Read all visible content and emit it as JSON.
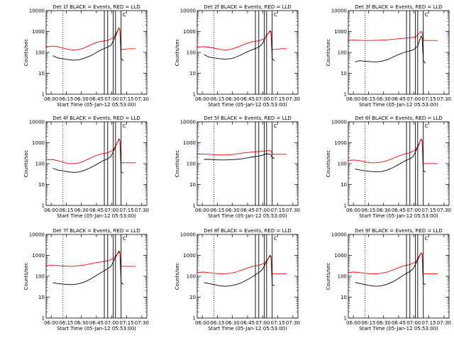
{
  "figure": {
    "xlabel": "Start Time (05-Jan-12 05:53:00)",
    "ylabel": "Counts/sec"
  },
  "chart_data": [
    {
      "type": "line",
      "title": "Det 1f BLACK = Events, RED = LLD",
      "xlabel": "Start Time (05-Jan-12 05:53:00)",
      "ylabel": "Counts/sec",
      "x_ticks": [
        "06:00",
        "06:15",
        "06:30",
        "06:45",
        "07:00",
        "07:15",
        "07:30"
      ],
      "y_ticks": [
        "1",
        "10",
        "100",
        "1000",
        "10000"
      ],
      "ylim": [
        1,
        10000
      ],
      "yscale": "log",
      "xlim_minutes": [
        0,
        90
      ],
      "vertical_lines_minutes": [
        52,
        55,
        60,
        62,
        67
      ],
      "dotted_line_minutes": 15,
      "annotation": "C",
      "series": [
        {
          "name": "Events",
          "color": "#000000",
          "x": [
            6,
            10,
            15,
            20,
            25,
            30,
            35,
            40,
            45,
            50,
            55,
            58,
            62,
            65,
            66,
            67,
            69
          ],
          "y": [
            70,
            55,
            50,
            45,
            42,
            45,
            55,
            70,
            100,
            140,
            180,
            220,
            600,
            1500,
            1200,
            50,
            40
          ]
        },
        {
          "name": "LLD",
          "color": "#ff0000",
          "x": [
            0,
            5,
            10,
            15,
            20,
            25,
            30,
            35,
            40,
            45,
            50,
            55,
            60,
            65,
            66,
            67,
            70,
            75,
            80
          ],
          "y": [
            180,
            200,
            190,
            160,
            140,
            130,
            140,
            170,
            230,
            300,
            340,
            380,
            500,
            1400,
            1200,
            140,
            140,
            150,
            150
          ]
        }
      ]
    },
    {
      "type": "line",
      "title": "Det 2f BLACK = Events, RED = LLD",
      "xlabel": "Start Time (05-Jan-12 05:53:00)",
      "ylabel": "Counts/sec",
      "x_ticks": [
        "06:00",
        "06:15",
        "06:30",
        "06:45",
        "07:00",
        "07:15",
        "07:30"
      ],
      "y_ticks": [
        "1",
        "10",
        "100",
        "1000",
        "10000"
      ],
      "ylim": [
        1,
        10000
      ],
      "yscale": "log",
      "xlim_minutes": [
        0,
        90
      ],
      "vertical_lines_minutes": [
        52,
        55,
        60,
        62,
        67
      ],
      "dotted_line_minutes": 15,
      "annotation": "C",
      "series": [
        {
          "name": "Events",
          "color": "#000000",
          "x": [
            6,
            10,
            15,
            20,
            25,
            30,
            35,
            40,
            45,
            50,
            55,
            58,
            62,
            65,
            66,
            67,
            69
          ],
          "y": [
            80,
            60,
            55,
            50,
            48,
            50,
            60,
            80,
            110,
            140,
            180,
            250,
            700,
            1000,
            900,
            50,
            40
          ]
        },
        {
          "name": "LLD",
          "color": "#ff0000",
          "x": [
            0,
            5,
            10,
            15,
            20,
            25,
            30,
            35,
            40,
            45,
            50,
            55,
            60,
            65,
            66,
            67,
            70,
            75,
            80
          ],
          "y": [
            170,
            190,
            180,
            160,
            140,
            130,
            140,
            170,
            220,
            280,
            330,
            360,
            450,
            1100,
            1000,
            140,
            140,
            150,
            150
          ]
        }
      ]
    },
    {
      "type": "line",
      "title": "Det 3f BLACK = Events, RED = LLD",
      "xlabel": "Start Time (05-Jan-12 05:53:00)",
      "ylabel": "Counts/sec",
      "x_ticks": [
        "06:00",
        "06:15",
        "06:30",
        "06:45",
        "07:00",
        "07:15",
        "07:30"
      ],
      "y_ticks": [
        "1",
        "10",
        "100",
        "1000",
        "10000"
      ],
      "ylim": [
        1,
        10000
      ],
      "yscale": "log",
      "xlim_minutes": [
        0,
        90
      ],
      "vertical_lines_minutes": [
        52,
        55,
        60,
        62,
        67
      ],
      "dotted_line_minutes": 15,
      "annotation": "C",
      "series": [
        {
          "name": "Events",
          "color": "#000000",
          "x": [
            6,
            10,
            15,
            20,
            25,
            30,
            35,
            40,
            45,
            50,
            55,
            58,
            62,
            65,
            66,
            67,
            69
          ],
          "y": [
            35,
            40,
            38,
            36,
            35,
            38,
            45,
            60,
            80,
            100,
            120,
            130,
            200,
            600,
            500,
            40,
            30
          ]
        },
        {
          "name": "LLD",
          "color": "#ff0000",
          "x": [
            0,
            5,
            10,
            15,
            20,
            25,
            30,
            35,
            40,
            45,
            50,
            55,
            60,
            65,
            66,
            67,
            70,
            75,
            80
          ],
          "y": [
            380,
            390,
            380,
            370,
            370,
            380,
            390,
            400,
            420,
            450,
            480,
            500,
            550,
            1000,
            900,
            380,
            370,
            370,
            370
          ]
        }
      ]
    },
    {
      "type": "line",
      "title": "Det 4f BLACK = Events, RED = LLD",
      "xlabel": "Start Time (05-Jan-12 05:53:00)",
      "ylabel": "Counts/sec",
      "x_ticks": [
        "06:00",
        "06:15",
        "06:30",
        "06:45",
        "07:00",
        "07:15",
        "07:30"
      ],
      "y_ticks": [
        "1",
        "10",
        "100",
        "1000",
        "10000"
      ],
      "ylim": [
        1,
        10000
      ],
      "yscale": "log",
      "xlim_minutes": [
        0,
        90
      ],
      "vertical_lines_minutes": [
        52,
        55,
        60,
        62,
        67
      ],
      "dotted_line_minutes": 15,
      "annotation": "C",
      "series": [
        {
          "name": "Events",
          "color": "#000000",
          "x": [
            6,
            10,
            15,
            20,
            25,
            30,
            35,
            40,
            45,
            50,
            55,
            58,
            62,
            65,
            66,
            67,
            69
          ],
          "y": [
            60,
            50,
            45,
            40,
            38,
            40,
            50,
            65,
            90,
            130,
            170,
            220,
            650,
            1500,
            1300,
            40,
            35
          ]
        },
        {
          "name": "LLD",
          "color": "#ff0000",
          "x": [
            0,
            5,
            10,
            15,
            20,
            25,
            30,
            35,
            40,
            45,
            50,
            55,
            60,
            65,
            66,
            67,
            70,
            75,
            80
          ],
          "y": [
            150,
            160,
            140,
            120,
            100,
            100,
            110,
            140,
            190,
            250,
            300,
            330,
            450,
            1400,
            1300,
            110,
            110,
            110,
            110
          ]
        }
      ]
    },
    {
      "type": "line",
      "title": "Det 5f BLACK = Events, RED = LLD",
      "xlabel": "Start Time (05-Jan-12 05:53:00)",
      "ylabel": "Counts/sec",
      "x_ticks": [
        "06:00",
        "06:15",
        "06:30",
        "06:45",
        "07:00",
        "07:15",
        "07:30"
      ],
      "y_ticks": [
        "1",
        "10",
        "100",
        "1000",
        "10000"
      ],
      "ylim": [
        1,
        10000
      ],
      "yscale": "log",
      "xlim_minutes": [
        0,
        90
      ],
      "vertical_lines_minutes": [
        52,
        55,
        60,
        62,
        67
      ],
      "dotted_line_minutes": 15,
      "annotation": "C",
      "series": [
        {
          "name": "Events",
          "color": "#000000",
          "x": [
            6,
            10,
            15,
            20,
            25,
            30,
            35,
            40,
            45,
            50,
            55,
            58,
            62,
            65,
            66,
            67,
            69
          ],
          "y": [
            160,
            160,
            155,
            150,
            150,
            155,
            160,
            170,
            190,
            210,
            230,
            250,
            300,
            280,
            260,
            190,
            180
          ]
        },
        {
          "name": "LLD",
          "color": "#ff0000",
          "x": [
            0,
            5,
            10,
            15,
            20,
            25,
            30,
            35,
            40,
            45,
            50,
            55,
            60,
            65,
            66,
            67,
            70,
            75,
            80
          ],
          "y": [
            290,
            290,
            280,
            270,
            260,
            260,
            270,
            290,
            320,
            340,
            360,
            380,
            400,
            420,
            400,
            290,
            280,
            280,
            280
          ]
        }
      ]
    },
    {
      "type": "line",
      "title": "Det 6f BLACK = Events, RED = LLD",
      "xlabel": "Start Time (05-Jan-12 05:53:00)",
      "ylabel": "Counts/sec",
      "x_ticks": [
        "06:00",
        "06:15",
        "06:30",
        "06:45",
        "07:00",
        "07:15",
        "07:30"
      ],
      "y_ticks": [
        "1",
        "10",
        "100",
        "1000",
        "10000"
      ],
      "ylim": [
        1,
        10000
      ],
      "yscale": "log",
      "xlim_minutes": [
        0,
        90
      ],
      "vertical_lines_minutes": [
        52,
        55,
        60,
        62,
        67
      ],
      "dotted_line_minutes": 15,
      "annotation": "C",
      "series": [
        {
          "name": "Events",
          "color": "#000000",
          "x": [
            6,
            10,
            15,
            20,
            25,
            30,
            35,
            40,
            45,
            50,
            55,
            58,
            62,
            65,
            66,
            67,
            69
          ],
          "y": [
            55,
            50,
            45,
            42,
            40,
            42,
            50,
            65,
            90,
            130,
            170,
            220,
            600,
            1500,
            1300,
            45,
            40
          ]
        },
        {
          "name": "LLD",
          "color": "#ff0000",
          "x": [
            0,
            5,
            10,
            15,
            20,
            25,
            30,
            35,
            40,
            45,
            50,
            55,
            60,
            65,
            66,
            67,
            70,
            75,
            80
          ],
          "y": [
            140,
            150,
            140,
            120,
            110,
            110,
            120,
            140,
            180,
            230,
            290,
            330,
            450,
            1400,
            1300,
            100,
            100,
            100,
            100
          ]
        }
      ]
    },
    {
      "type": "line",
      "title": "Det 7f BLACK = Events, RED = LLD",
      "xlabel": "Start Time (05-Jan-12 05:53:00)",
      "ylabel": "Counts/sec",
      "x_ticks": [
        "06:00",
        "06:15",
        "06:30",
        "06:45",
        "07:00",
        "07:15",
        "07:30"
      ],
      "y_ticks": [
        "1",
        "10",
        "100",
        "1000",
        "10000"
      ],
      "ylim": [
        1,
        10000
      ],
      "yscale": "log",
      "xlim_minutes": [
        0,
        90
      ],
      "vertical_lines_minutes": [
        52,
        55,
        60,
        62,
        67
      ],
      "dotted_line_minutes": 15,
      "annotation": "C",
      "series": [
        {
          "name": "Events",
          "color": "#000000",
          "x": [
            6,
            10,
            15,
            20,
            25,
            30,
            35,
            40,
            45,
            50,
            55,
            58,
            62,
            65,
            66,
            67,
            69
          ],
          "y": [
            50,
            45,
            42,
            40,
            40,
            45,
            55,
            75,
            110,
            160,
            230,
            300,
            800,
            1600,
            1400,
            50,
            40
          ]
        },
        {
          "name": "LLD",
          "color": "#ff0000",
          "x": [
            0,
            5,
            10,
            15,
            20,
            25,
            30,
            35,
            40,
            45,
            50,
            55,
            60,
            65,
            66,
            67,
            70,
            75,
            80
          ],
          "y": [
            320,
            330,
            320,
            310,
            300,
            300,
            320,
            350,
            400,
            450,
            500,
            550,
            700,
            1400,
            1300,
            300,
            300,
            300,
            300
          ]
        }
      ]
    },
    {
      "type": "line",
      "title": "Det 8f BLACK = Events, RED = LLD",
      "xlabel": "Start Time (05-Jan-12 05:53:00)",
      "ylabel": "Counts/sec",
      "x_ticks": [
        "06:00",
        "06:15",
        "06:30",
        "06:45",
        "07:00",
        "07:15",
        "07:30"
      ],
      "y_ticks": [
        "1",
        "10",
        "100",
        "1000",
        "10000"
      ],
      "ylim": [
        1,
        10000
      ],
      "yscale": "log",
      "xlim_minutes": [
        0,
        90
      ],
      "vertical_lines_minutes": [
        52,
        55,
        60,
        62,
        67
      ],
      "dotted_line_minutes": 15,
      "annotation": "C",
      "series": [
        {
          "name": "Events",
          "color": "#000000",
          "x": [
            6,
            10,
            15,
            20,
            25,
            30,
            35,
            40,
            45,
            50,
            55,
            58,
            62,
            65,
            66,
            67,
            69
          ],
          "y": [
            50,
            45,
            40,
            35,
            33,
            35,
            40,
            50,
            70,
            100,
            150,
            200,
            500,
            1000,
            900,
            40,
            35
          ]
        },
        {
          "name": "LLD",
          "color": "#ff0000",
          "x": [
            0,
            5,
            10,
            15,
            20,
            25,
            30,
            35,
            40,
            45,
            50,
            55,
            60,
            65,
            66,
            67,
            70,
            75,
            80
          ],
          "y": [
            150,
            160,
            150,
            140,
            130,
            130,
            140,
            160,
            200,
            250,
            300,
            330,
            420,
            900,
            850,
            130,
            130,
            130,
            130
          ]
        }
      ]
    },
    {
      "type": "line",
      "title": "Det 9f BLACK = Events, RED = LLD",
      "xlabel": "Start Time (05-Jan-12 05:53:00)",
      "ylabel": "Counts/sec",
      "x_ticks": [
        "06:00",
        "06:15",
        "06:30",
        "06:45",
        "07:00",
        "07:15",
        "07:30"
      ],
      "y_ticks": [
        "1",
        "10",
        "100",
        "1000",
        "10000"
      ],
      "ylim": [
        1,
        10000
      ],
      "yscale": "log",
      "xlim_minutes": [
        0,
        90
      ],
      "vertical_lines_minutes": [
        52,
        55,
        60,
        62,
        67
      ],
      "dotted_line_minutes": 15,
      "annotation": "C",
      "series": [
        {
          "name": "Events",
          "color": "#000000",
          "x": [
            6,
            10,
            15,
            20,
            25,
            30,
            35,
            40,
            45,
            50,
            55,
            58,
            62,
            65,
            66,
            67,
            69
          ],
          "y": [
            50,
            45,
            40,
            35,
            33,
            35,
            42,
            55,
            80,
            120,
            170,
            230,
            600,
            1300,
            1100,
            45,
            40
          ]
        },
        {
          "name": "LLD",
          "color": "#ff0000",
          "x": [
            0,
            5,
            10,
            15,
            20,
            25,
            30,
            35,
            40,
            45,
            50,
            55,
            60,
            65,
            66,
            67,
            70,
            75,
            80
          ],
          "y": [
            150,
            160,
            150,
            140,
            130,
            130,
            140,
            160,
            200,
            260,
            320,
            360,
            480,
            1300,
            1200,
            130,
            130,
            130,
            130
          ]
        }
      ]
    }
  ]
}
